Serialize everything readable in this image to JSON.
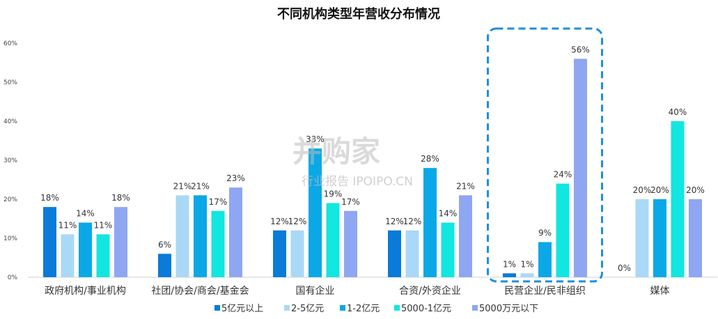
{
  "chart_data": {
    "type": "bar",
    "title": "不同机构类型年营收分布情况",
    "categories": [
      "政府机构/事业机构",
      "社团/协会/商会/基金会",
      "国有企业",
      "合资/外资企业",
      "民营企业/民非组织",
      "媒体"
    ],
    "series": [
      {
        "name": "5亿元以上",
        "color": "#0a7bd8",
        "values": [
          18,
          6,
          12,
          12,
          1,
          0
        ]
      },
      {
        "name": "2-5亿元",
        "color": "#a9d9f7",
        "values": [
          11,
          21,
          12,
          12,
          1,
          20
        ]
      },
      {
        "name": "1-2亿元",
        "color": "#0aa8e6",
        "values": [
          14,
          21,
          33,
          28,
          9,
          20
        ]
      },
      {
        "name": "5000-1亿元",
        "color": "#12e6e0",
        "values": [
          11,
          17,
          19,
          14,
          24,
          40
        ]
      },
      {
        "name": "5000万元以下",
        "color": "#8fa6f2",
        "values": [
          18,
          23,
          17,
          21,
          56,
          20
        ]
      }
    ],
    "data_labels": [
      [
        "18%",
        "11%",
        "14%",
        "11%",
        "18%"
      ],
      [
        "6%",
        "21%",
        "21%",
        "17%",
        "23%"
      ],
      [
        "12%",
        "12%",
        "33%",
        "19%",
        "17%"
      ],
      [
        "12%",
        "12%",
        "28%",
        "14%",
        "21%"
      ],
      [
        "1%",
        "1%",
        "9%",
        "24%",
        "56%"
      ],
      [
        "0%",
        "20%",
        "20%",
        "40%",
        "20%"
      ]
    ],
    "y_ticks": [
      "0%",
      "10%",
      "20%",
      "30%",
      "40%",
      "50%",
      "60%"
    ],
    "ylim": [
      0,
      60
    ],
    "grid": false,
    "legend_position": "bottom",
    "highlight": {
      "category_index": 4,
      "color": "#1a8fe0",
      "style": "dashed"
    }
  },
  "watermark": {
    "main": "并购家",
    "sub": "行业报告 IPOIPO.CN"
  }
}
